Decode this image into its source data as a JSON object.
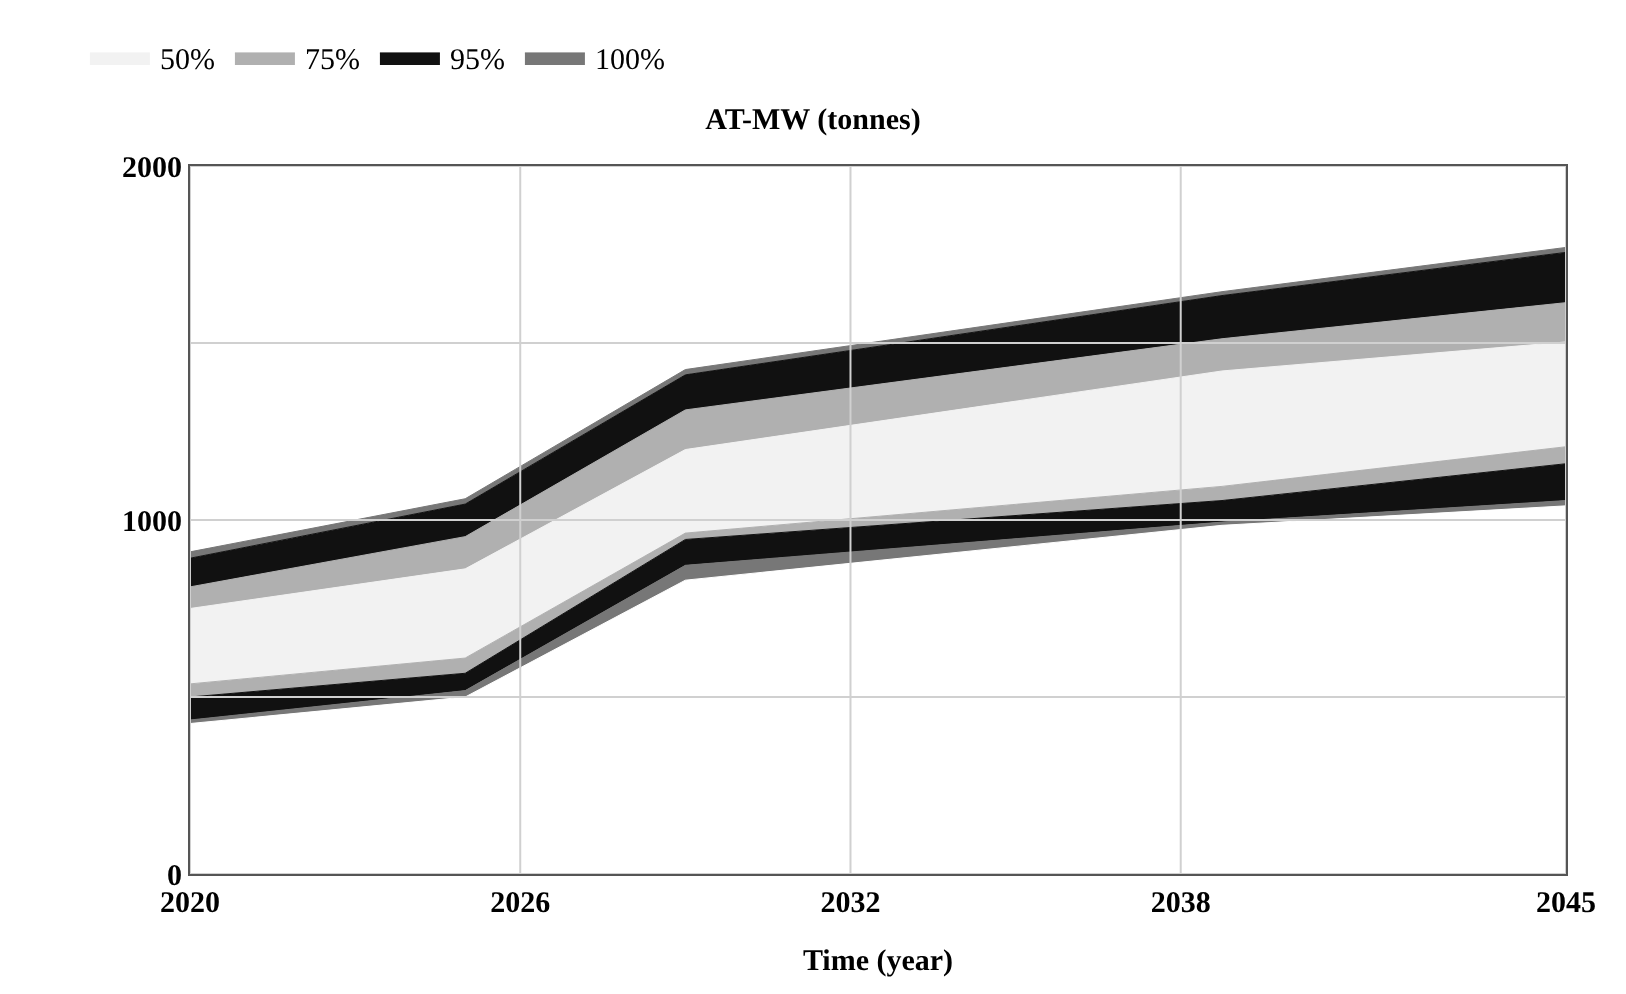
{
  "chart_data": {
    "type": "area",
    "stacked": true,
    "title": "AT-MW (tonnes)",
    "xlabel": "Time (year)",
    "x": [
      2020,
      2025,
      2029,
      2038.75,
      2045
    ],
    "series": [
      {
        "color": "#ffffff",
        "values": [
          425,
          500,
          830,
          985,
          1040
        ]
      },
      {
        "color": "#777777",
        "values": [
          10,
          18,
          42,
          9,
          15
        ]
      },
      {
        "color": "#111111",
        "values": [
          65,
          49,
          73,
          61,
          104
        ]
      },
      {
        "color": "#b0b0b0",
        "values": [
          37,
          43,
          18,
          40,
          48
        ]
      },
      {
        "name": "50%",
        "color": "#f2f2f2",
        "values": [
          213,
          252,
          236,
          326,
          296
        ]
      },
      {
        "name": "75%",
        "color": "#b0b0b0",
        "values": [
          61,
          91,
          112,
          91,
          111
        ]
      },
      {
        "name": "95%",
        "color": "#111111",
        "values": [
          81,
          92,
          99,
          122,
          142
        ]
      },
      {
        "name": "100%",
        "color": "#777777",
        "values": [
          18,
          15,
          15,
          11,
          14
        ]
      }
    ],
    "xlim": [
      2020,
      2045
    ],
    "xticks": [
      2020,
      2026,
      2032,
      2038,
      2045
    ],
    "ylim": [
      0,
      2000
    ],
    "yticks": [
      0,
      {
        "value": 500,
        "label": null
      },
      1000,
      {
        "value": 1500,
        "label": null
      },
      2000
    ],
    "grid": true,
    "legend": "top left"
  }
}
